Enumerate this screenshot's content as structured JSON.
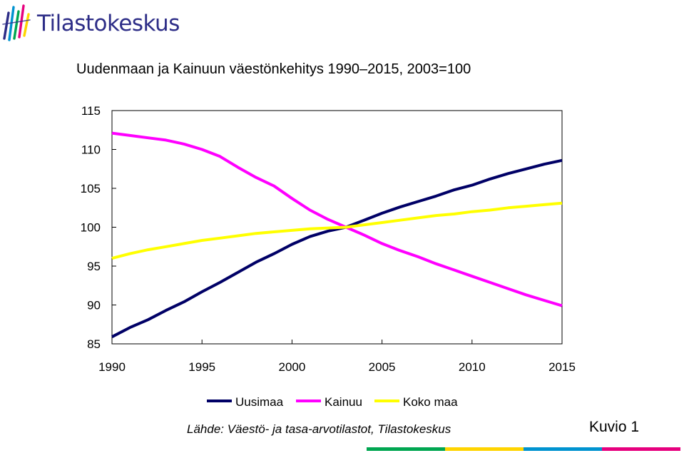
{
  "header": {
    "logo_text": "Tilastokeskus"
  },
  "footer": {
    "source": "Lähde: Väestö- ja tasa-arvotilastot, Tilastokeskus",
    "figure_number": "Kuvio 1",
    "bar_colors": [
      "#00a651",
      "#ffd400",
      "#0093d0",
      "#e6007e"
    ]
  },
  "chart_data": {
    "type": "line",
    "title": "Uudenmaan ja Kainuun väestönkehitys 1990–2015, 2003=100",
    "xlabel": "",
    "ylabel": "",
    "x": [
      1990,
      1991,
      1992,
      1993,
      1994,
      1995,
      1996,
      1997,
      1998,
      1999,
      2000,
      2001,
      2002,
      2003,
      2004,
      2005,
      2006,
      2007,
      2008,
      2009,
      2010,
      2011,
      2012,
      2013,
      2014,
      2015
    ],
    "xlim": [
      1990,
      2015
    ],
    "ylim": [
      85,
      115
    ],
    "x_ticks": [
      1990,
      1995,
      2000,
      2005,
      2010,
      2015
    ],
    "y_ticks": [
      85,
      90,
      95,
      100,
      105,
      110,
      115
    ],
    "grid": false,
    "legend": "bottom",
    "series": [
      {
        "name": "Uusimaa",
        "color": "#000066",
        "values": [
          85.9,
          87.1,
          88.1,
          89.3,
          90.4,
          91.7,
          92.9,
          94.2,
          95.5,
          96.6,
          97.8,
          98.8,
          99.5,
          100.0,
          100.9,
          101.8,
          102.6,
          103.3,
          104.0,
          104.8,
          105.4,
          106.2,
          106.9,
          107.5,
          108.1,
          108.6
        ]
      },
      {
        "name": "Kainuu",
        "color": "#ff00ff",
        "values": [
          112.1,
          111.8,
          111.5,
          111.2,
          110.7,
          110.0,
          109.1,
          107.7,
          106.4,
          105.3,
          103.7,
          102.2,
          101.0,
          100.0,
          99.0,
          97.9,
          97.0,
          96.2,
          95.3,
          94.5,
          93.7,
          92.9,
          92.1,
          91.3,
          90.6,
          89.9
        ]
      },
      {
        "name": "Koko maa",
        "color": "#ffff00",
        "values": [
          96.0,
          96.6,
          97.1,
          97.5,
          97.9,
          98.3,
          98.6,
          98.9,
          99.2,
          99.4,
          99.6,
          99.8,
          99.9,
          100.0,
          100.3,
          100.6,
          100.9,
          101.2,
          101.5,
          101.7,
          102.0,
          102.2,
          102.5,
          102.7,
          102.9,
          103.1
        ]
      }
    ]
  }
}
